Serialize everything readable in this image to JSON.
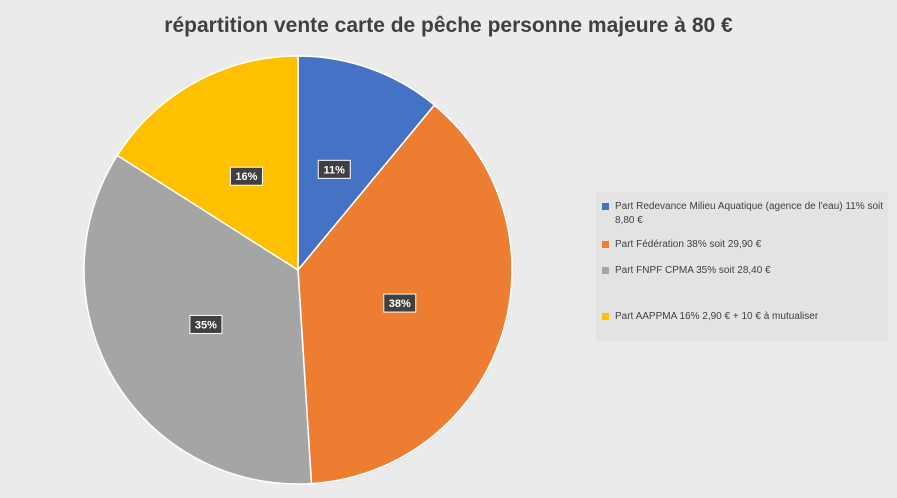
{
  "chart_data": {
    "type": "pie",
    "title": "répartition vente carte de pêche personne majeure à 80 €",
    "categories": [
      "Part Redevance Milieu Aquatique (agence de l'eau) 11% soit 8,80 €",
      "Part Fédération 38% soit 29,90 €",
      "Part FNPF CPMA 35% soit 28,40 €",
      "Part AAPPMA 16% 2,90 € + 10 € à mutualiser"
    ],
    "values": [
      11,
      38,
      35,
      16
    ],
    "data_labels": [
      "11%",
      "38%",
      "35%",
      "16%"
    ],
    "colors": [
      "#4472c4",
      "#ed7d31",
      "#a5a5a5",
      "#ffc000"
    ],
    "legend_position": "right"
  }
}
